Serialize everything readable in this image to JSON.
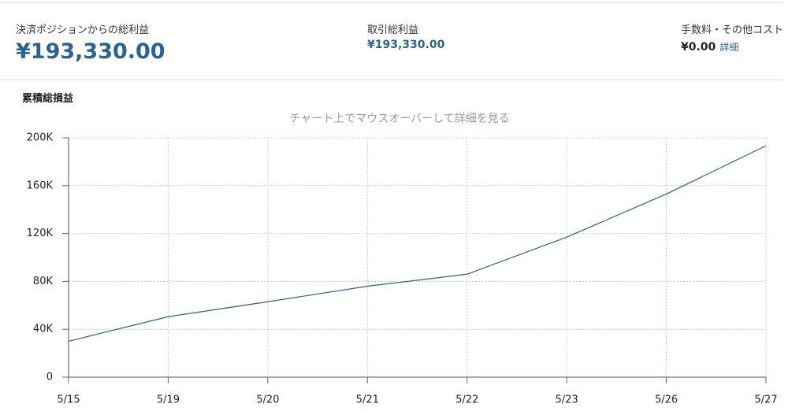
{
  "stats": [
    {
      "label": "決済ポジションからの総利益",
      "value": "¥193,330.00"
    },
    {
      "label": "取引総利益",
      "value": "¥193,330.00"
    },
    {
      "label": "手数料・その他コスト",
      "value": "¥0.00",
      "link": "詳細"
    }
  ],
  "section_title": "累積総損益",
  "chart_data": {
    "type": "line",
    "subtitle": "チャート上でマウスオーバーして詳細を見る",
    "categories": [
      "5/15",
      "5/19",
      "5/20",
      "5/21",
      "5/22",
      "5/23",
      "5/26",
      "5/27"
    ],
    "series": [
      {
        "name": "累積総損益",
        "color": "#2d5f8a",
        "values": [
          30000,
          50500,
          63000,
          76000,
          86000,
          117000,
          153000,
          193330
        ]
      }
    ],
    "ylim": [
      0,
      200000
    ],
    "yticks": [
      0,
      {
        "value": 40000,
        "label": "40K"
      },
      {
        "value": 80000,
        "label": "80K"
      },
      {
        "value": 120000,
        "label": "120K"
      },
      {
        "value": 160000,
        "label": "160K"
      },
      {
        "value": 200000,
        "label": "200K"
      }
    ],
    "grid": true
  }
}
